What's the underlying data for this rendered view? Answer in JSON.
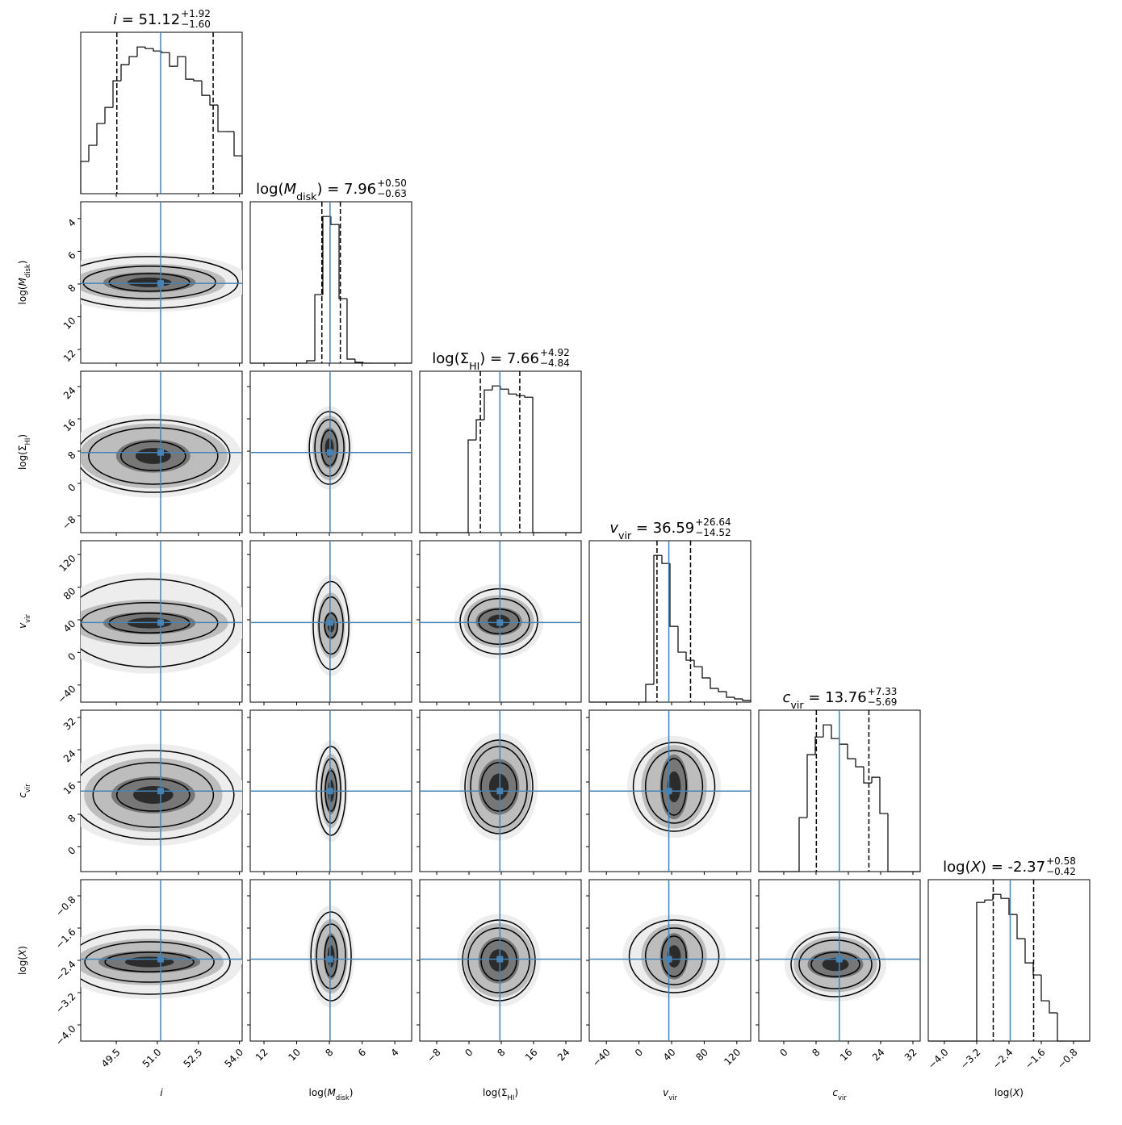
{
  "chart_data": {
    "type": "corner",
    "title_separator": " = ",
    "median_color": "#4682b4",
    "line_color": "#000000",
    "shade": [
      "#ededed",
      "#bdbdbd",
      "#777777",
      "#2b2b2b"
    ],
    "params": [
      {
        "label": [
          {
            "text": "i",
            "italic": true
          }
        ],
        "median": 51.12,
        "upper": {
          "value": 1.92,
          "label": "+1.92"
        },
        "lower": {
          "value": -1.6,
          "label": "−1.60"
        },
        "lim": [
          48.2,
          54.1
        ],
        "ticks": [
          49.5,
          {
            "value": 51,
            "label": "51.0"
          },
          52.5,
          {
            "value": 54,
            "label": "54.0"
          }
        ],
        "bins": [
          48.2,
          48.495,
          48.79,
          49.085,
          49.38,
          49.675,
          49.97,
          50.265,
          50.56,
          50.855,
          51.15,
          51.445,
          51.74,
          52.035,
          52.33,
          52.625,
          52.92,
          53.215,
          53.51,
          53.805,
          54.1
        ],
        "counts": [
          40,
          60,
          87,
          107,
          140,
          160,
          170,
          182,
          180,
          177,
          175,
          158,
          170,
          142,
          140,
          122,
          110,
          77,
          77,
          47
        ]
      },
      {
        "label": [
          {
            "text": "log("
          },
          {
            "text": "M",
            "italic": true
          },
          {
            "text": "disk",
            "sub": true
          },
          {
            "text": ")"
          }
        ],
        "median": 7.96,
        "upper": {
          "value": 0.5,
          "label": "+0.50"
        },
        "lower": {
          "value": -0.63,
          "label": "−0.63"
        },
        "lim": [
          12.84,
          2.97
        ],
        "ticks": [
          12,
          10,
          8,
          6,
          4
        ],
        "bins": [
          12.84,
          12.35,
          11.85,
          11.36,
          10.87,
          10.37,
          9.88,
          9.39,
          8.89,
          8.4,
          7.91,
          7.41,
          6.92,
          6.43,
          5.93,
          5.44,
          4.95,
          4.45,
          3.96,
          3.47,
          2.97
        ],
        "counts": [
          0,
          0,
          0,
          0,
          0,
          0,
          0,
          3,
          85,
          182,
          172,
          80,
          5,
          1,
          0,
          0,
          0,
          0,
          0,
          0
        ]
      },
      {
        "label": [
          {
            "text": "log("
          },
          {
            "text": "Σ"
          },
          {
            "text": "HI",
            "sub": true
          },
          {
            "text": ")"
          }
        ],
        "median": 7.66,
        "upper": {
          "value": 4.92,
          "label": "+4.92"
        },
        "lower": {
          "value": -4.84,
          "label": "−4.84"
        },
        "lim": [
          -12.2,
          27.8
        ],
        "ticks": [
          {
            "value": -8,
            "label": "−8"
          },
          0,
          8,
          16,
          24
        ],
        "bins": [
          -12.2,
          -10.2,
          -8.2,
          -6.2,
          -4.2,
          -2.2,
          -0.2,
          1.8,
          3.8,
          5.8,
          7.8,
          9.8,
          11.8,
          13.8,
          15.8,
          17.8,
          19.8,
          21.8,
          23.8,
          25.8,
          27.8
        ],
        "counts": [
          0,
          0,
          0,
          0,
          0,
          0,
          115,
          140,
          177,
          182,
          178,
          172,
          170,
          168,
          0,
          0,
          0,
          0,
          0,
          0
        ]
      },
      {
        "label": [
          {
            "text": "v",
            "italic": true
          },
          {
            "text": "vir",
            "sub": true
          }
        ],
        "median": 36.59,
        "upper": {
          "value": 26.64,
          "label": "+26.64"
        },
        "lower": {
          "value": -14.52,
          "label": "−14.52"
        },
        "lim": [
          -61,
          137
        ],
        "ticks": [
          {
            "value": -40,
            "label": "−40"
          },
          0,
          40,
          80,
          120
        ],
        "bins": [
          -61,
          -51.1,
          -41.2,
          -31.3,
          -21.4,
          -11.5,
          -1.6,
          8.3,
          18.2,
          28.1,
          38,
          47.9,
          57.8,
          67.7,
          77.6,
          87.5,
          97.4,
          107.3,
          117.2,
          127.1,
          137
        ],
        "counts": [
          0,
          0,
          0,
          0,
          0,
          0,
          0,
          22,
          182,
          172,
          94,
          62,
          52,
          44,
          30,
          17,
          13,
          6,
          4,
          2
        ]
      },
      {
        "label": [
          {
            "text": "c",
            "italic": true
          },
          {
            "text": "vir",
            "sub": true
          }
        ],
        "median": 13.76,
        "upper": {
          "value": 7.33,
          "label": "+7.33"
        },
        "lower": {
          "value": -5.69,
          "label": "−5.69"
        },
        "lim": [
          -6.2,
          33.8
        ],
        "ticks": [
          0,
          8,
          16,
          24,
          32
        ],
        "bins": [
          -6.2,
          -4.2,
          -2.2,
          -0.2,
          1.8,
          3.8,
          5.8,
          7.8,
          9.8,
          11.8,
          13.8,
          15.8,
          17.8,
          19.8,
          21.8,
          23.8,
          25.8,
          27.8,
          29.8,
          31.8,
          33.8
        ],
        "counts": [
          0,
          0,
          0,
          0,
          0,
          67,
          145,
          167,
          182,
          165,
          158,
          140,
          130,
          110,
          117,
          72,
          0,
          0,
          0,
          0
        ]
      },
      {
        "label": [
          {
            "text": "log("
          },
          {
            "text": "X",
            "italic": true
          },
          {
            "text": ")"
          }
        ],
        "median": -2.37,
        "upper": {
          "value": 0.58,
          "label": "+0.58"
        },
        "lower": {
          "value": -0.42,
          "label": "−0.42"
        },
        "lim": [
          -4.4,
          -0.4
        ],
        "ticks": [
          {
            "value": -4,
            "label": "−4.0"
          },
          {
            "value": -3.2,
            "label": "−3.2"
          },
          {
            "value": -2.4,
            "label": "−2.4"
          },
          {
            "value": -1.6,
            "label": "−1.6"
          },
          {
            "value": -0.8,
            "label": "−0.8"
          }
        ],
        "bins": [
          -4.4,
          -4.2,
          -4,
          -3.8,
          -3.6,
          -3.4,
          -3.2,
          -3,
          -2.8,
          -2.6,
          -2.4,
          -2.2,
          -2,
          -1.8,
          -1.6,
          -1.4,
          -1.2,
          -1,
          -0.8,
          -0.6,
          -0.4
        ],
        "counts": [
          0,
          0,
          0,
          0,
          0,
          0,
          172,
          175,
          182,
          177,
          157,
          127,
          97,
          82,
          50,
          35,
          0,
          0,
          0,
          0
        ]
      }
    ],
    "panels": [
      {
        "x": 0,
        "y": 1,
        "center": [
          50.71,
          7.9
        ],
        "levels": [
          [
            3.24,
            1.58
          ],
          [
            2.42,
            0.99
          ],
          [
            1.47,
            0.54
          ]
        ]
      },
      {
        "x": 0,
        "y": 2,
        "center": [
          50.85,
          6.8
        ],
        "levels": [
          [
            2.8,
            9
          ],
          [
            2.36,
            7
          ],
          [
            1.18,
            3.6
          ]
        ]
      },
      {
        "x": 0,
        "y": 3,
        "center": [
          50.71,
          36
        ],
        "levels": [
          [
            3.1,
            54
          ],
          [
            2.5,
            25
          ],
          [
            1.47,
            12
          ]
        ]
      },
      {
        "x": 0,
        "y": 4,
        "center": [
          50.85,
          12.8
        ],
        "levels": [
          [
            2.95,
            11
          ],
          [
            2.2,
            8
          ],
          [
            1.33,
            4
          ]
        ]
      },
      {
        "x": 0,
        "y": 5,
        "center": [
          50.71,
          -2.44
        ],
        "levels": [
          [
            2.95,
            0.8
          ],
          [
            2.36,
            0.5
          ],
          [
            1.62,
            0.24
          ]
        ]
      },
      {
        "x": 1,
        "y": 2,
        "center": [
          8,
          8.8
        ],
        "levels": [
          [
            1.23,
            9
          ],
          [
            0.89,
            7
          ],
          [
            0.49,
            4.4
          ]
        ]
      },
      {
        "x": 1,
        "y": 3,
        "center": [
          7.9,
          33
        ],
        "levels": [
          [
            1.09,
            54
          ],
          [
            0.74,
            35
          ],
          [
            0.39,
            15
          ]
        ]
      },
      {
        "x": 1,
        "y": 4,
        "center": [
          7.9,
          13.8
        ],
        "levels": [
          [
            0.89,
            11
          ],
          [
            0.59,
            8
          ],
          [
            0.35,
            5
          ]
        ]
      },
      {
        "x": 1,
        "y": 5,
        "center": [
          7.9,
          -2.3
        ],
        "levels": [
          [
            1.23,
            1.1
          ],
          [
            0.89,
            0.8
          ],
          [
            0.39,
            0.5
          ]
        ]
      },
      {
        "x": 2,
        "y": 3,
        "center": [
          7.4,
          38
        ],
        "levels": [
          [
            9.6,
            40
          ],
          [
            7.6,
            28
          ],
          [
            5,
            15
          ]
        ]
      },
      {
        "x": 2,
        "y": 4,
        "center": [
          7.4,
          14.8
        ],
        "levels": [
          [
            8.4,
            11.6
          ],
          [
            7,
            10
          ],
          [
            4.4,
            6
          ]
        ]
      },
      {
        "x": 2,
        "y": 5,
        "center": [
          7.4,
          -2.4
        ],
        "levels": [
          [
            9,
            1
          ],
          [
            7.6,
            0.8
          ],
          [
            4.4,
            0.5
          ]
        ]
      },
      {
        "x": 3,
        "y": 4,
        "center": [
          43,
          14.8
        ],
        "levels": [
          [
            50,
            11
          ],
          [
            35,
            9
          ],
          [
            15,
            7
          ]
        ]
      },
      {
        "x": 3,
        "y": 5,
        "center": [
          43,
          -2.3
        ],
        "levels": [
          [
            55,
            0.9
          ],
          [
            35,
            0.7
          ],
          [
            15,
            0.5
          ]
        ]
      },
      {
        "x": 4,
        "y": 5,
        "center": [
          12.8,
          -2.5
        ],
        "levels": [
          [
            11,
            0.8
          ],
          [
            9,
            0.6
          ],
          [
            6,
            0.3
          ]
        ]
      }
    ]
  }
}
